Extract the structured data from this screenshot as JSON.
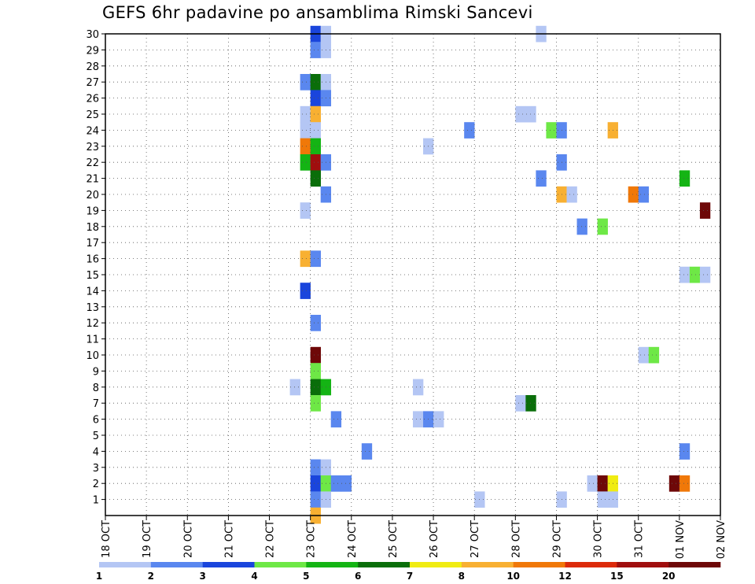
{
  "title": "GEFS 6hr padavine po ansamblima Rimski Sancevi",
  "chart_data": {
    "type": "heatmap",
    "title": "GEFS 6hr padavine po ansamblima Rimski Sancevi",
    "xlabel": "",
    "ylabel": "",
    "x_tick_labels": [
      "18 OCT",
      "19 OCT",
      "20 OCT",
      "21 OCT",
      "22 OCT",
      "23 OCT",
      "24 OCT",
      "25 OCT",
      "26 OCT",
      "27 OCT",
      "28 OCT",
      "29 OCT",
      "30 OCT",
      "31 OCT",
      "01 NOV",
      "02 NOV"
    ],
    "y_tick_labels": [
      1,
      2,
      3,
      4,
      5,
      6,
      7,
      8,
      9,
      10,
      11,
      12,
      13,
      14,
      15,
      16,
      17,
      18,
      19,
      20,
      21,
      22,
      23,
      24,
      25,
      26,
      27,
      28,
      29,
      30
    ],
    "x_unit": "6-hour steps from 18 OCT 00Z",
    "xlim": [
      0,
      60
    ],
    "ylim": [
      0,
      30
    ],
    "grid": true,
    "color_scale": {
      "levels": [
        "1",
        "2",
        "3",
        "4",
        "5",
        "6",
        "7",
        "8",
        "10",
        "12",
        "15",
        "20"
      ],
      "colors": [
        "#b4c6f4",
        "#5a87ef",
        "#1a45dc",
        "#6ee846",
        "#14b414",
        "#0a6e0a",
        "#f0ec12",
        "#f8b032",
        "#f07808",
        "#dc2a0a",
        "#a00e0e",
        "#6e0808"
      ]
    },
    "cells": [
      {
        "t": 20,
        "m": 30,
        "v": 3
      },
      {
        "t": 21,
        "m": 30,
        "v": 1
      },
      {
        "t": 42,
        "m": 30,
        "v": 1
      },
      {
        "t": 20,
        "m": 29,
        "v": 2
      },
      {
        "t": 21,
        "m": 29,
        "v": 1
      },
      {
        "t": 19,
        "m": 27,
        "v": 2
      },
      {
        "t": 20,
        "m": 27,
        "v": 6
      },
      {
        "t": 21,
        "m": 27,
        "v": 1
      },
      {
        "t": 20,
        "m": 26,
        "v": 3
      },
      {
        "t": 21,
        "m": 26,
        "v": 2
      },
      {
        "t": 19,
        "m": 25,
        "v": 1
      },
      {
        "t": 20,
        "m": 25,
        "v": 8
      },
      {
        "t": 40,
        "m": 25,
        "v": 1
      },
      {
        "t": 41,
        "m": 25,
        "v": 1
      },
      {
        "t": 19,
        "m": 24,
        "v": 1
      },
      {
        "t": 20,
        "m": 24,
        "v": 1
      },
      {
        "t": 35,
        "m": 24,
        "v": 2
      },
      {
        "t": 43,
        "m": 24,
        "v": 4
      },
      {
        "t": 44,
        "m": 24,
        "v": 2
      },
      {
        "t": 49,
        "m": 24,
        "v": 8
      },
      {
        "t": 19,
        "m": 23,
        "v": 10
      },
      {
        "t": 20,
        "m": 23,
        "v": 5
      },
      {
        "t": 31,
        "m": 23,
        "v": 1
      },
      {
        "t": 19,
        "m": 22,
        "v": 5
      },
      {
        "t": 20,
        "m": 22,
        "v": 15
      },
      {
        "t": 21,
        "m": 22,
        "v": 2
      },
      {
        "t": 44,
        "m": 22,
        "v": 2
      },
      {
        "t": 20,
        "m": 21,
        "v": 6
      },
      {
        "t": 42,
        "m": 21,
        "v": 2
      },
      {
        "t": 56,
        "m": 21,
        "v": 5
      },
      {
        "t": 21,
        "m": 20,
        "v": 2
      },
      {
        "t": 44,
        "m": 20,
        "v": 8
      },
      {
        "t": 45,
        "m": 20,
        "v": 1
      },
      {
        "t": 51,
        "m": 20,
        "v": 10
      },
      {
        "t": 52,
        "m": 20,
        "v": 2
      },
      {
        "t": 19,
        "m": 19,
        "v": 1
      },
      {
        "t": 58,
        "m": 19,
        "v": 20
      },
      {
        "t": 46,
        "m": 18,
        "v": 2
      },
      {
        "t": 48,
        "m": 18,
        "v": 4
      },
      {
        "t": 19,
        "m": 16,
        "v": 8
      },
      {
        "t": 20,
        "m": 16,
        "v": 2
      },
      {
        "t": 56,
        "m": 15,
        "v": 1
      },
      {
        "t": 57,
        "m": 15,
        "v": 4
      },
      {
        "t": 58,
        "m": 15,
        "v": 1
      },
      {
        "t": 19,
        "m": 14,
        "v": 3
      },
      {
        "t": 20,
        "m": 12,
        "v": 2
      },
      {
        "t": 20,
        "m": 10,
        "v": 20
      },
      {
        "t": 52,
        "m": 10,
        "v": 1
      },
      {
        "t": 53,
        "m": 10,
        "v": 4
      },
      {
        "t": 20,
        "m": 9,
        "v": 4
      },
      {
        "t": 18,
        "m": 8,
        "v": 1
      },
      {
        "t": 20,
        "m": 8,
        "v": 6
      },
      {
        "t": 21,
        "m": 8,
        "v": 5
      },
      {
        "t": 30,
        "m": 8,
        "v": 1
      },
      {
        "t": 20,
        "m": 7,
        "v": 4
      },
      {
        "t": 40,
        "m": 7,
        "v": 1
      },
      {
        "t": 41,
        "m": 7,
        "v": 6
      },
      {
        "t": 22,
        "m": 6,
        "v": 2
      },
      {
        "t": 30,
        "m": 6,
        "v": 1
      },
      {
        "t": 31,
        "m": 6,
        "v": 2
      },
      {
        "t": 32,
        "m": 6,
        "v": 1
      },
      {
        "t": 25,
        "m": 4,
        "v": 2
      },
      {
        "t": 56,
        "m": 4,
        "v": 2
      },
      {
        "t": 20,
        "m": 3,
        "v": 2
      },
      {
        "t": 21,
        "m": 3,
        "v": 1
      },
      {
        "t": 20,
        "m": 2,
        "v": 3
      },
      {
        "t": 21,
        "m": 2,
        "v": 4
      },
      {
        "t": 22,
        "m": 2,
        "v": 2
      },
      {
        "t": 23,
        "m": 2,
        "v": 2
      },
      {
        "t": 47,
        "m": 2,
        "v": 1
      },
      {
        "t": 48,
        "m": 2,
        "v": 20
      },
      {
        "t": 49,
        "m": 2,
        "v": 7
      },
      {
        "t": 55,
        "m": 2,
        "v": 20
      },
      {
        "t": 56,
        "m": 2,
        "v": 10
      },
      {
        "t": 20,
        "m": 1,
        "v": 2
      },
      {
        "t": 21,
        "m": 1,
        "v": 1
      },
      {
        "t": 36,
        "m": 1,
        "v": 1
      },
      {
        "t": 44,
        "m": 1,
        "v": 1
      },
      {
        "t": 48,
        "m": 1,
        "v": 1
      },
      {
        "t": 49,
        "m": 1,
        "v": 1
      },
      {
        "t": 20,
        "m": 0,
        "v": 8
      }
    ]
  }
}
